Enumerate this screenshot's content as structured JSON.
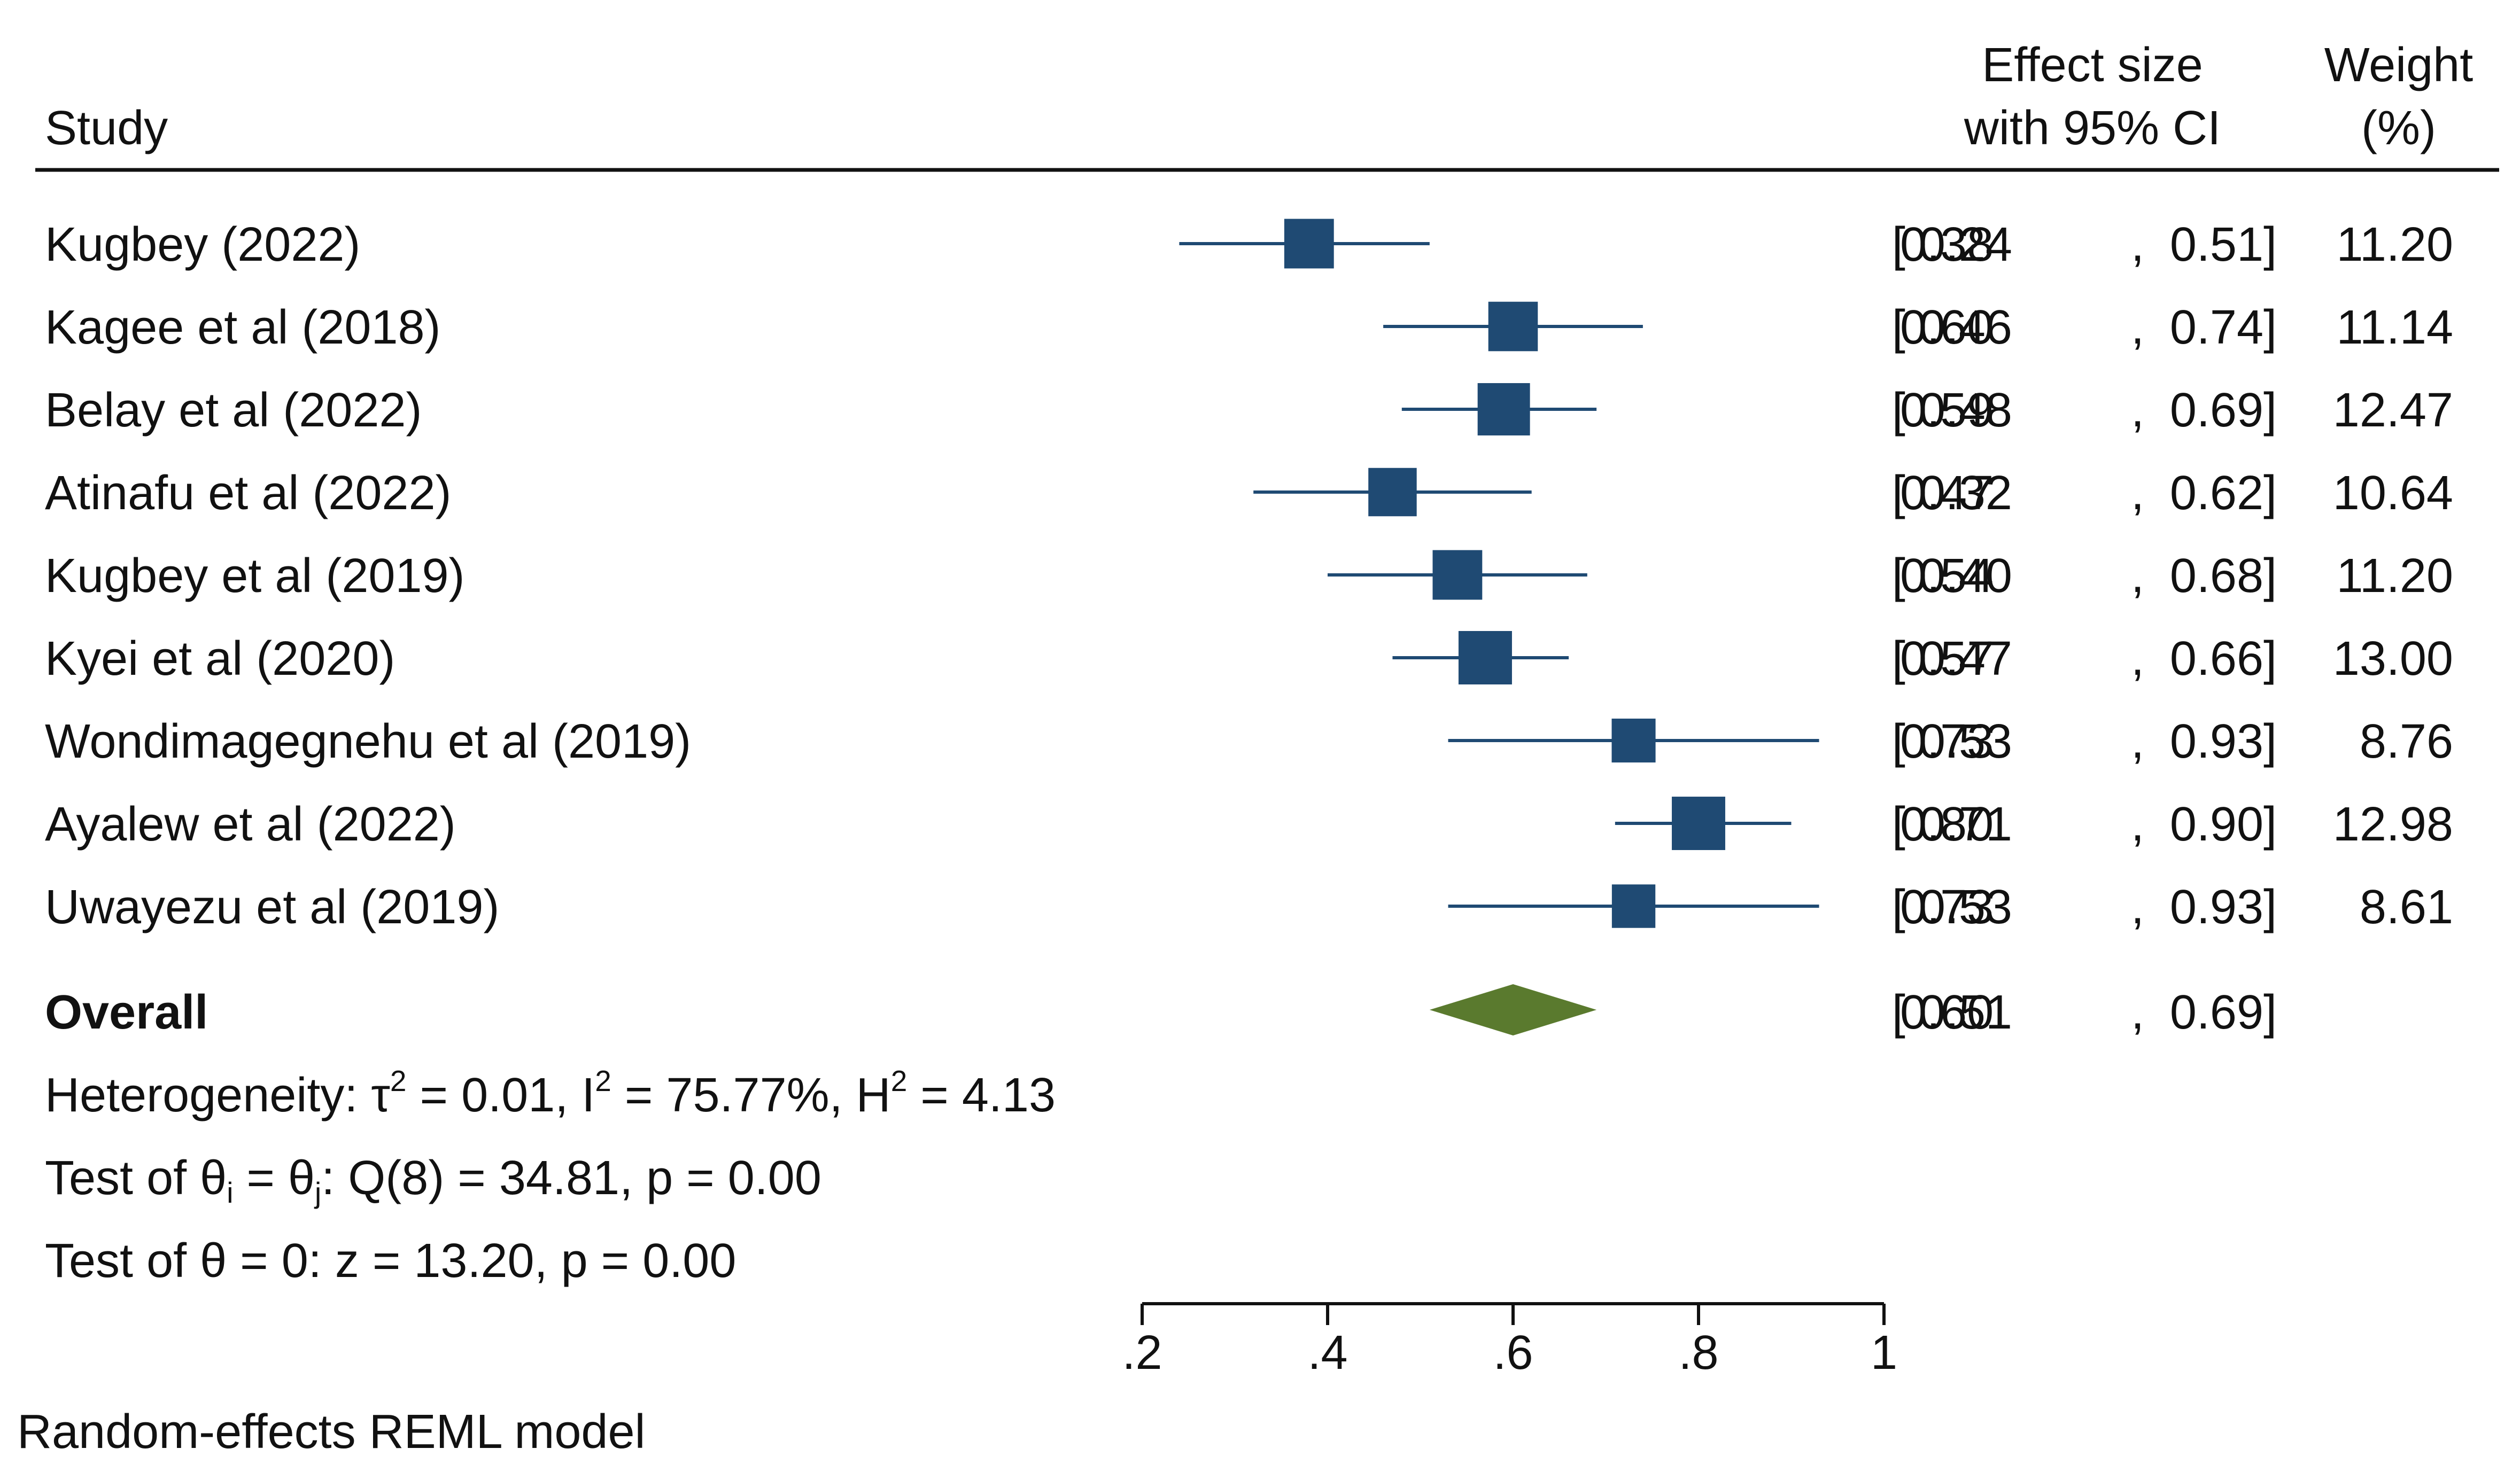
{
  "header": {
    "study": "Study",
    "effect_line1": "Effect size",
    "effect_line2": "with 95% CI",
    "weight_line1": "Weight",
    "weight_line2": "(%)"
  },
  "footer": {
    "model": "Random-effects REML model"
  },
  "stats": {
    "heterogeneity": {
      "prefix": "Heterogeneity: τ",
      "tau_sup": "2",
      "tau_val": " = 0.01, I",
      "i_sup": "2",
      "i_val": " = 75.77%, H",
      "h_sup": "2",
      "h_val": " = 4.13"
    },
    "test_theta_ij": {
      "prefix": "Test of θ",
      "sub_i": "i",
      "mid": " = θ",
      "sub_j": "j",
      "suffix": ": Q(8) = 34.81, p = 0.00"
    },
    "test_theta_zero": "Test of θ = 0: z = 13.20, p = 0.00"
  },
  "colors": {
    "marker": "#1f4a73",
    "diamond": "#5a7a2e",
    "text": "#111111"
  },
  "chart_data": {
    "type": "forest",
    "xlim": [
      0.2,
      1.0
    ],
    "xticks": [
      0.2,
      0.4,
      0.6,
      0.8,
      1.0
    ],
    "xtick_labels": [
      ".2",
      ".4",
      ".6",
      ".8",
      "1"
    ],
    "grid": false,
    "studies": [
      {
        "label": "Kugbey (2022)",
        "effect": 0.38,
        "lower": 0.24,
        "upper": 0.51,
        "weight": 11.2,
        "es_text": "0.38",
        "lo_text": "0.24",
        "hi_text": "0.51",
        "w_text": "11.20"
      },
      {
        "label": "Kagee et al (2018)",
        "effect": 0.6,
        "lower": 0.46,
        "upper": 0.74,
        "weight": 11.14,
        "es_text": "0.60",
        "lo_text": "0.46",
        "hi_text": "0.74",
        "w_text": "11.14"
      },
      {
        "label": "Belay et al (2022)",
        "effect": 0.59,
        "lower": 0.48,
        "upper": 0.69,
        "weight": 12.47,
        "es_text": "0.59",
        "lo_text": "0.48",
        "hi_text": "0.69",
        "w_text": "12.47"
      },
      {
        "label": "Atinafu et al (2022)",
        "effect": 0.47,
        "lower": 0.32,
        "upper": 0.62,
        "weight": 10.64,
        "es_text": "0.47",
        "lo_text": "0.32",
        "hi_text": "0.62",
        "w_text": "10.64"
      },
      {
        "label": "Kugbey et al (2019)",
        "effect": 0.54,
        "lower": 0.4,
        "upper": 0.68,
        "weight": 11.2,
        "es_text": "0.54",
        "lo_text": "0.40",
        "hi_text": "0.68",
        "w_text": "11.20"
      },
      {
        "label": "Kyei et al (2020)",
        "effect": 0.57,
        "lower": 0.47,
        "upper": 0.66,
        "weight": 13.0,
        "es_text": "0.57",
        "lo_text": "0.47",
        "hi_text": "0.66",
        "w_text": "13.00"
      },
      {
        "label": "Wondimagegnehu et al (2019)",
        "effect": 0.73,
        "lower": 0.53,
        "upper": 0.93,
        "weight": 8.76,
        "es_text": "0.73",
        "lo_text": "0.53",
        "hi_text": "0.93",
        "w_text": "8.76"
      },
      {
        "label": "Ayalew et al (2022)",
        "effect": 0.8,
        "lower": 0.71,
        "upper": 0.9,
        "weight": 12.98,
        "es_text": "0.80",
        "lo_text": "0.71",
        "hi_text": "0.90",
        "w_text": "12.98"
      },
      {
        "label": "Uwayezu et al (2019)",
        "effect": 0.73,
        "lower": 0.53,
        "upper": 0.93,
        "weight": 8.61,
        "es_text": "0.73",
        "lo_text": "0.53",
        "hi_text": "0.93",
        "w_text": "8.61"
      }
    ],
    "overall": {
      "label": "Overall",
      "effect": 0.6,
      "lower": 0.51,
      "upper": 0.69,
      "es_text": "0.60",
      "lo_text": "0.51",
      "hi_text": "0.69"
    }
  }
}
